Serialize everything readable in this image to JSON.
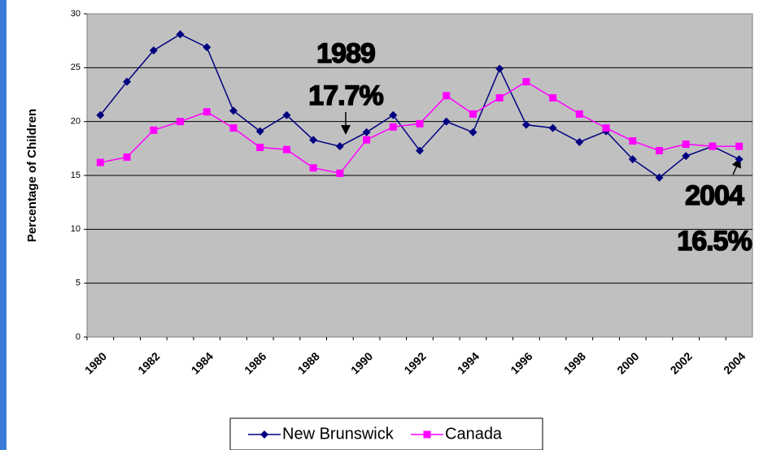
{
  "chart_data": {
    "type": "line",
    "y_label": "Percentage of Children",
    "categories": [
      "1980",
      null,
      "1982",
      null,
      "1984",
      null,
      "1986",
      null,
      "1988",
      null,
      "1990",
      null,
      "1992",
      null,
      "1994",
      null,
      "1996",
      null,
      "1998",
      null,
      "2000",
      null,
      "2002",
      null,
      "2004"
    ],
    "series": [
      {
        "name": "New Brunswick",
        "color": "#000080",
        "marker": "diamond",
        "values": [
          20.6,
          23.7,
          26.6,
          28.1,
          26.9,
          21.0,
          19.1,
          20.6,
          18.3,
          17.7,
          19.0,
          20.6,
          17.3,
          20.0,
          19.0,
          24.9,
          19.7,
          19.4,
          18.1,
          19.1,
          16.5,
          14.8,
          16.8,
          17.7,
          16.5
        ]
      },
      {
        "name": "Canada",
        "color": "#ff00ff",
        "marker": "square",
        "values": [
          16.2,
          16.7,
          19.2,
          20.0,
          20.9,
          19.4,
          17.6,
          17.4,
          15.7,
          15.2,
          18.3,
          19.5,
          19.8,
          22.4,
          20.7,
          22.2,
          23.7,
          22.2,
          20.7,
          19.4,
          18.2,
          17.3,
          17.9,
          17.7,
          17.7
        ]
      }
    ],
    "ylim": [
      0,
      30
    ],
    "yticks": [
      0,
      5,
      10,
      15,
      20,
      25,
      30
    ],
    "grid": true,
    "annotations": [
      "1989",
      "17.7%",
      "2004",
      "16.5%"
    ],
    "legend": "bottom"
  }
}
